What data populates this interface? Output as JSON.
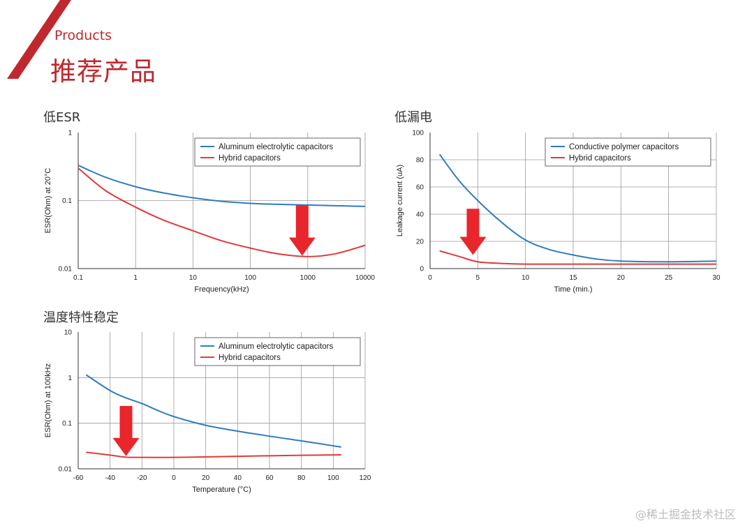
{
  "header": {
    "subtitle": "Products",
    "title": "推荐产品",
    "accent_color": "#c0282e"
  },
  "sections": {
    "esr": "低ESR",
    "leakage": "低漏电",
    "temperature": "温度特性稳定"
  },
  "watermark": "@稀土掘金技术社区",
  "colors": {
    "blue": "#2f7cc0",
    "red": "#e03a3a",
    "arrow": "#e8262b",
    "grid": "#9a9a9a"
  },
  "chart_data": [
    {
      "id": "esr",
      "type": "line",
      "xscale": "log",
      "yscale": "log",
      "xlim": [
        0.1,
        10000
      ],
      "ylim": [
        0.01,
        1
      ],
      "xticks": [
        0.1,
        1,
        10,
        100,
        1000,
        10000
      ],
      "xtick_labels": [
        "0.1",
        "1",
        "10",
        "100",
        "1000",
        "10000"
      ],
      "yticks": [
        0.01,
        0.1,
        1
      ],
      "ytick_labels": [
        "0.01",
        "0.1",
        "1"
      ],
      "xlabel": "Frequency(kHz)",
      "ylabel": "ESR(Ohm) at 20°C",
      "legend": [
        "Aluminum electrolytic capacitors",
        "Hybrid capacitors"
      ],
      "series": [
        {
          "name": "Aluminum electrolytic capacitors",
          "color": "blue",
          "x": [
            0.1,
            0.3,
            1,
            3,
            10,
            30,
            100,
            300,
            1000,
            3000,
            10000
          ],
          "y": [
            0.33,
            0.22,
            0.16,
            0.13,
            0.11,
            0.098,
            0.091,
            0.088,
            0.086,
            0.084,
            0.082
          ]
        },
        {
          "name": "Hybrid capacitors",
          "color": "red",
          "x": [
            0.1,
            0.3,
            1,
            3,
            10,
            30,
            100,
            300,
            1000,
            3000,
            10000
          ],
          "y": [
            0.3,
            0.14,
            0.08,
            0.052,
            0.036,
            0.026,
            0.02,
            0.0165,
            0.015,
            0.0165,
            0.022
          ]
        }
      ],
      "arrow": {
        "x": 800,
        "y_top": 0.085,
        "y_bottom": 0.0155
      }
    },
    {
      "id": "leakage",
      "type": "line",
      "xscale": "linear",
      "yscale": "linear",
      "xlim": [
        0,
        30
      ],
      "ylim": [
        0,
        100
      ],
      "xticks": [
        0,
        5,
        10,
        15,
        20,
        25,
        30
      ],
      "xtick_labels": [
        "0",
        "5",
        "10",
        "15",
        "20",
        "25",
        "30"
      ],
      "yticks": [
        0,
        20,
        40,
        60,
        80,
        100
      ],
      "ytick_labels": [
        "0",
        "20",
        "40",
        "60",
        "80",
        "100"
      ],
      "xlabel": "Time (min.)",
      "ylabel": "Leakage current (uA)",
      "legend": [
        "Conductive polymer capacitors",
        "Hybrid capacitors"
      ],
      "series": [
        {
          "name": "Conductive polymer capacitors",
          "color": "blue",
          "x": [
            1,
            3,
            5,
            7.5,
            10,
            12.5,
            15,
            17.5,
            20,
            25,
            30
          ],
          "y": [
            84,
            65,
            50,
            34,
            21,
            14,
            10,
            7,
            5.5,
            5,
            5.5
          ]
        },
        {
          "name": "Hybrid capacitors",
          "color": "red",
          "x": [
            1,
            3,
            5,
            7.5,
            10,
            15,
            20,
            25,
            30
          ],
          "y": [
            13,
            9,
            5,
            3.8,
            3.3,
            3.3,
            3.3,
            3.3,
            3.3
          ]
        }
      ],
      "arrow": {
        "x": 4.5,
        "y_top": 44,
        "y_bottom": 10
      }
    },
    {
      "id": "temperature",
      "type": "line",
      "xscale": "linear",
      "yscale": "log",
      "xlim": [
        -60,
        120
      ],
      "ylim": [
        0.01,
        10
      ],
      "xticks": [
        -60,
        -40,
        -20,
        0,
        20,
        40,
        60,
        80,
        100,
        120
      ],
      "xtick_labels": [
        "-60",
        "-40",
        "-20",
        "0",
        "20",
        "40",
        "60",
        "80",
        "100",
        "120"
      ],
      "yticks": [
        0.01,
        0.1,
        1,
        10
      ],
      "ytick_labels": [
        "0.01",
        "0.1",
        "1",
        "10"
      ],
      "xlabel": "Temperature (°C)",
      "ylabel": "ESR(Ohm) at 100kHz",
      "legend": [
        "Aluminum electrolytic capacitors",
        "Hybrid capacitors"
      ],
      "series": [
        {
          "name": "Aluminum electrolytic capacitors",
          "color": "blue",
          "x": [
            -55,
            -40,
            -30,
            -20,
            -10,
            0,
            20,
            40,
            60,
            80,
            105
          ],
          "y": [
            1.15,
            0.52,
            0.36,
            0.27,
            0.19,
            0.14,
            0.09,
            0.067,
            0.052,
            0.041,
            0.03
          ]
        },
        {
          "name": "Hybrid capacitors",
          "color": "red",
          "x": [
            -55,
            -40,
            -30,
            -20,
            0,
            20,
            40,
            60,
            80,
            105
          ],
          "y": [
            0.023,
            0.02,
            0.018,
            0.0178,
            0.0178,
            0.0182,
            0.0188,
            0.0193,
            0.0198,
            0.0202
          ]
        }
      ],
      "arrow": {
        "x": -30,
        "y_top": 0.24,
        "y_bottom": 0.019
      }
    }
  ]
}
